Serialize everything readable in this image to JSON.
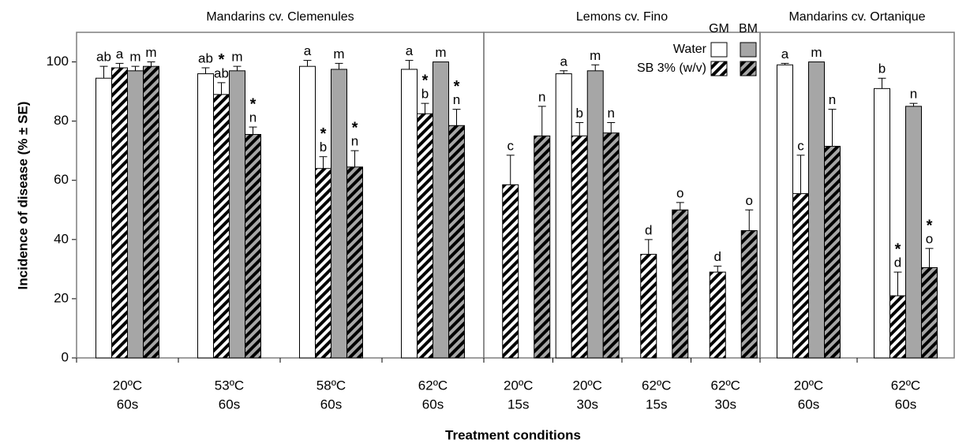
{
  "chart_data": {
    "type": "bar",
    "panels": [
      {
        "title": "Mandarins cv. Clemenules",
        "categories": [
          0,
          1,
          2,
          3
        ]
      },
      {
        "title": "Lemons cv. Fino",
        "categories": [
          4,
          5,
          6,
          7
        ]
      },
      {
        "title": "Mandarins cv. Ortanique",
        "categories": [
          8,
          9
        ]
      }
    ],
    "categories": [
      [
        "20ºC",
        "60s"
      ],
      [
        "53ºC",
        "60s"
      ],
      [
        "58ºC",
        "60s"
      ],
      [
        "62ºC",
        "60s"
      ],
      [
        "20ºC",
        "15s"
      ],
      [
        "20ºC",
        "30s"
      ],
      [
        "62ºC",
        "15s"
      ],
      [
        "62ºC",
        "30s"
      ],
      [
        "20ºC",
        "60s"
      ],
      [
        "62ºC",
        "60s"
      ]
    ],
    "legend": {
      "columns": [
        "GM",
        "BM"
      ],
      "rows": [
        "Water",
        "SB 3% (w/v)"
      ]
    },
    "series": [
      {
        "color": "#ffffff",
        "hatch": false,
        "values": [
          94.5,
          96,
          98.5,
          97.5,
          null,
          96,
          null,
          null,
          99,
          91
        ],
        "errors": [
          4,
          2,
          2,
          3,
          null,
          1,
          null,
          null,
          0.5,
          3.5
        ],
        "letters": [
          "ab",
          "ab",
          "a",
          "a",
          null,
          "a",
          null,
          null,
          "a",
          "b"
        ],
        "stars": [
          null,
          null,
          null,
          null,
          null,
          null,
          null,
          null,
          null,
          null
        ]
      },
      {
        "color": "#ffffff",
        "hatch": true,
        "values": [
          98,
          89,
          64,
          82.5,
          58.5,
          75,
          35,
          29,
          55.5,
          21
        ],
        "errors": [
          1.5,
          4,
          4,
          3.5,
          10,
          4.5,
          5,
          2,
          13,
          8
        ],
        "letters": [
          "a",
          "ab",
          "b",
          "b",
          "c",
          "b",
          "d",
          "d",
          "c",
          "d"
        ],
        "stars": [
          null,
          "*",
          "*",
          "*",
          null,
          null,
          null,
          null,
          null,
          "*"
        ]
      },
      {
        "color": "#a6a6a6",
        "hatch": false,
        "values": [
          97,
          97,
          97.5,
          100,
          null,
          97,
          null,
          null,
          100,
          85
        ],
        "errors": [
          1.5,
          1.5,
          2,
          0,
          null,
          2,
          null,
          null,
          0,
          1
        ],
        "letters": [
          "m",
          "m",
          "m",
          "m",
          null,
          "m",
          null,
          null,
          "m",
          "n"
        ],
        "stars": [
          null,
          null,
          null,
          null,
          null,
          null,
          null,
          null,
          null,
          null
        ]
      },
      {
        "color": "#a6a6a6",
        "hatch": true,
        "values": [
          98.5,
          75.5,
          64.5,
          78.5,
          75,
          76,
          50,
          43,
          71.5,
          30.5
        ],
        "errors": [
          1.5,
          2.5,
          5.5,
          5.5,
          10,
          3.5,
          2.5,
          7,
          12.5,
          6.5
        ],
        "letters": [
          "m",
          "n",
          "n",
          "n",
          "n",
          "n",
          "o",
          "o",
          "n",
          "o"
        ],
        "stars": [
          null,
          "*",
          "*",
          "*",
          null,
          null,
          null,
          null,
          null,
          "*"
        ]
      }
    ],
    "ylabel": "Incidence of disease (% ± SE)",
    "xlabel": "Treatment conditions",
    "ylim": [
      0,
      110
    ],
    "yticks": [
      0,
      20,
      40,
      60,
      80,
      100
    ]
  }
}
